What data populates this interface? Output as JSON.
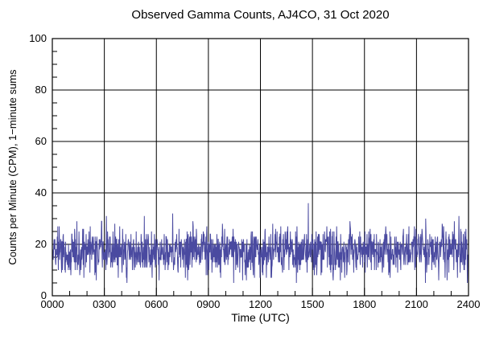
{
  "chart_data": {
    "type": "line",
    "title": "Observed Gamma Counts, AJ4CO, 31 Oct 2020",
    "xlabel": "Time (UTC)",
    "ylabel": "Counts per Minute (CPM), 1−minute sums",
    "xlim": [
      0,
      1440
    ],
    "ylim": [
      0,
      100
    ],
    "x_major_tick_minutes": 180,
    "x_minor_tick_minutes": 60,
    "x_tick_labels": [
      "0000",
      "0300",
      "0600",
      "0900",
      "1200",
      "1500",
      "1800",
      "2100",
      "2400"
    ],
    "y_major_tick": 20,
    "y_minor_tick": 5,
    "y_tick_labels": [
      "0",
      "20",
      "40",
      "60",
      "80",
      "100"
    ],
    "grid": {
      "major": true,
      "style": "solid",
      "color": "#000000"
    },
    "legend": null,
    "line_color": "#4a4aa0",
    "axis_color": "#000000",
    "background_color": "#ffffff",
    "series": [
      {
        "name": "Observed gamma counts, 1-minute sums",
        "sample_interval_minutes": 1,
        "n_points": 1440,
        "stats": {
          "baseline_mean_cpm": 17.5,
          "approx_std_cpm": 4.5,
          "typical_band_cpm": [
            8,
            28
          ],
          "min_cpm": 4,
          "max_cpm": 36,
          "max_time_utc": "1445"
        },
        "noise_model": {
          "distribution": "gaussian-integer",
          "mean": 17.5,
          "std": 4.5,
          "clamp_min": 3,
          "clamp_max": 50,
          "seed": 77
        },
        "spikes": [
          {
            "minute": 187,
            "time_utc": "0307",
            "value": 31
          },
          {
            "minute": 885,
            "time_utc": "1445",
            "value": 36
          },
          {
            "minute": 1406,
            "time_utc": "2326",
            "value": 31
          }
        ]
      }
    ]
  }
}
